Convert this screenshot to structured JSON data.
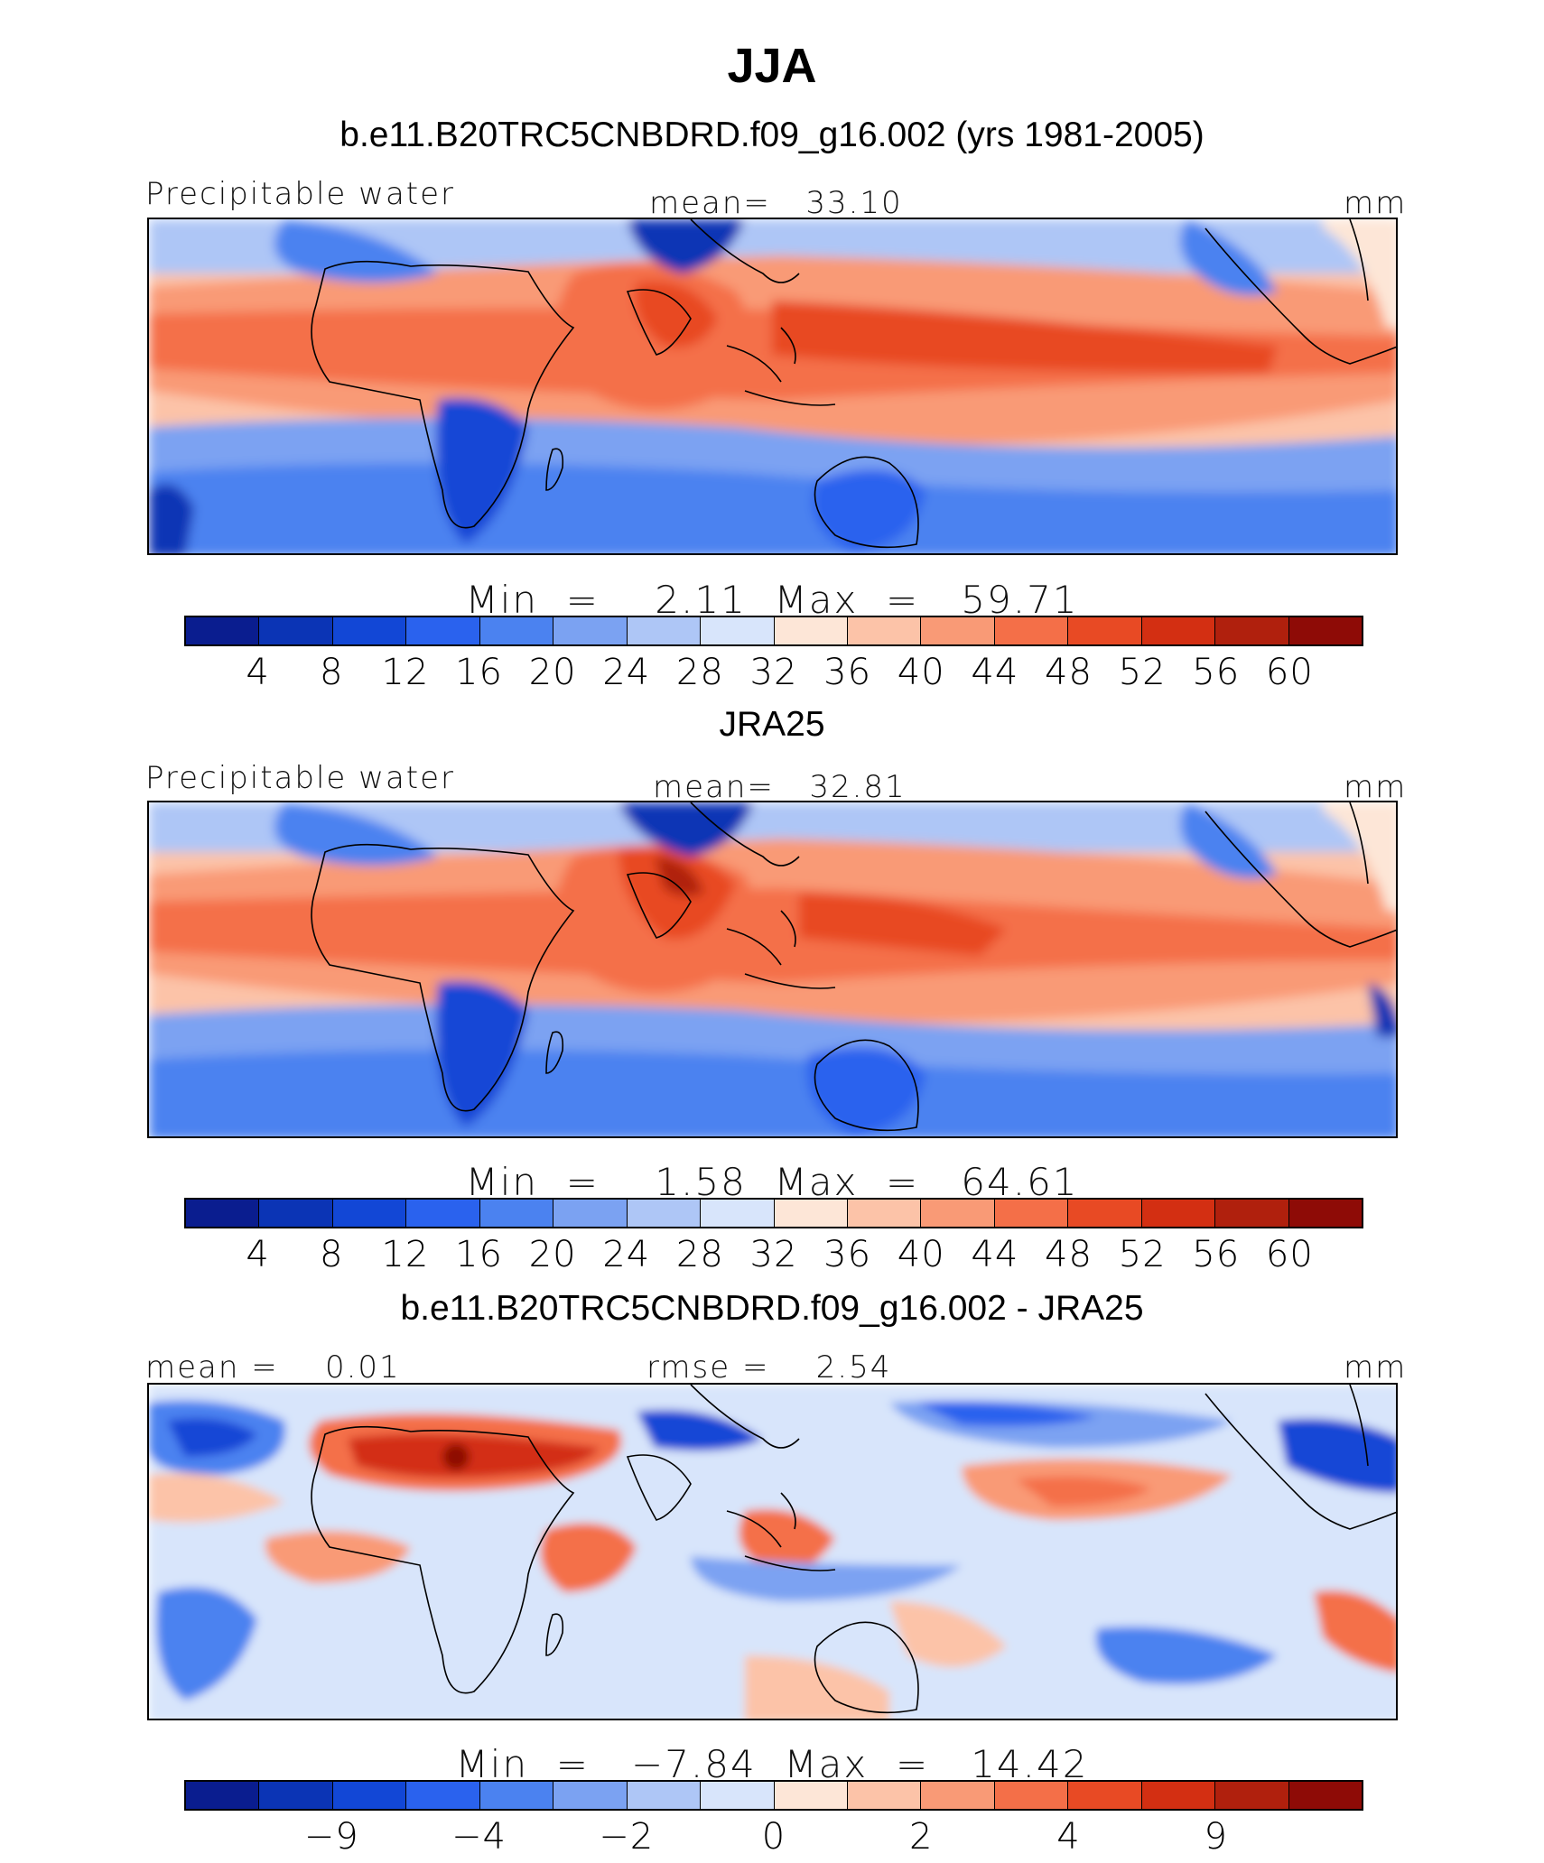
{
  "figure": {
    "title": "JJA"
  },
  "panels": [
    {
      "title": "b.e11.B20TRC5CNBDRD.f09_g16.002 (yrs 1981-2005)",
      "left_label": "Precipitable water",
      "center_label": "mean=   33.10",
      "units": "mm",
      "minmax": "Min  =    2.11  Max  =   59.71",
      "colorbar_labels": [
        "4",
        "8",
        "12",
        "16",
        "20",
        "24",
        "28",
        "32",
        "36",
        "40",
        "44",
        "48",
        "52",
        "56",
        "60"
      ]
    },
    {
      "title": "JRA25",
      "left_label": "Precipitable water",
      "center_label": "mean=   32.81",
      "units": "mm",
      "minmax": "Min  =    1.58  Max  =   64.61",
      "colorbar_labels": [
        "4",
        "8",
        "12",
        "16",
        "20",
        "24",
        "28",
        "32",
        "36",
        "40",
        "44",
        "48",
        "52",
        "56",
        "60"
      ]
    },
    {
      "title": "b.e11.B20TRC5CNBDRD.f09_g16.002 - JRA25",
      "left_label": "mean =    0.01",
      "center_label": "rmse =    2.54",
      "units": "mm",
      "minmax": "Min  =   −7.84  Max  =   14.42",
      "colorbar_labels": [
        "−9",
        "−4",
        "−2",
        "0",
        "2",
        "4",
        "9"
      ]
    }
  ],
  "colors": {
    "palette": [
      "#0a1d8f",
      "#0b34b5",
      "#1247d6",
      "#2a62ee",
      "#4b82f0",
      "#7ba2f2",
      "#aec6f6",
      "#d8e5fb",
      "#fde6d7",
      "#fcc3a8",
      "#f99a76",
      "#f46f48",
      "#e84a24",
      "#d32f12",
      "#b0200d",
      "#8e0b06"
    ]
  }
}
